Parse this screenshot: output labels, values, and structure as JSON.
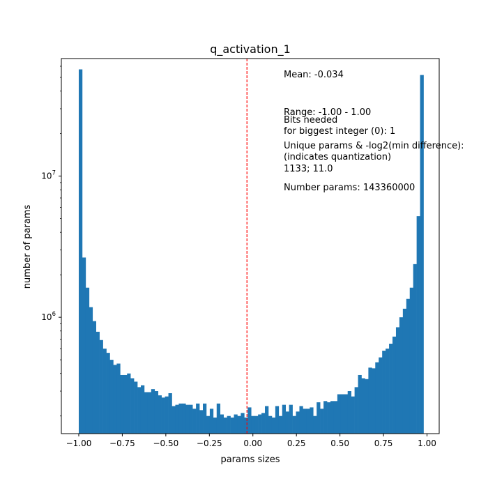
{
  "chart_data": {
    "type": "bar",
    "title": "q_activation_1",
    "xlabel": "params sizes",
    "ylabel": "number of params",
    "yscale": "log",
    "xlim": [
      -1.1,
      1.07
    ],
    "ylim": [
      150000,
      68000000
    ],
    "grid": false,
    "bar_color": "#1f77b4",
    "mean_line": {
      "value": -0.034,
      "color": "#ff0000",
      "style": "dashed"
    },
    "x_ticks": [
      {
        "value": -1.0,
        "label": "−1.00"
      },
      {
        "value": -0.75,
        "label": "−0.75"
      },
      {
        "value": -0.5,
        "label": "−0.50"
      },
      {
        "value": -0.25,
        "label": "−0.25"
      },
      {
        "value": 0.0,
        "label": "0.00"
      },
      {
        "value": 0.25,
        "label": "0.25"
      },
      {
        "value": 0.5,
        "label": "0.50"
      },
      {
        "value": 0.75,
        "label": "0.75"
      },
      {
        "value": 1.0,
        "label": "1.00"
      }
    ],
    "y_ticks": [
      {
        "value": 1000000,
        "base": "10",
        "exp": "6"
      },
      {
        "value": 10000000,
        "base": "10",
        "exp": "7"
      }
    ],
    "bins": {
      "start": -1.0,
      "end": 0.98,
      "count": 100
    },
    "values": [
      57000000,
      2650000,
      1620000,
      1180000,
      940000,
      790000,
      690000,
      600000,
      560000,
      500000,
      460000,
      470000,
      390000,
      390000,
      400000,
      370000,
      350000,
      320000,
      330000,
      295000,
      295000,
      310000,
      300000,
      280000,
      270000,
      275000,
      290000,
      235000,
      240000,
      245000,
      245000,
      240000,
      240000,
      225000,
      245000,
      220000,
      245000,
      200000,
      225000,
      195000,
      245000,
      205000,
      195000,
      200000,
      195000,
      205000,
      200000,
      210000,
      195000,
      230000,
      200000,
      200000,
      205000,
      210000,
      235000,
      200000,
      195000,
      235000,
      200000,
      240000,
      215000,
      240000,
      200000,
      215000,
      235000,
      225000,
      225000,
      230000,
      200000,
      250000,
      225000,
      255000,
      250000,
      255000,
      255000,
      285000,
      285000,
      285000,
      300000,
      275000,
      320000,
      390000,
      370000,
      365000,
      440000,
      435000,
      480000,
      520000,
      580000,
      600000,
      650000,
      730000,
      850000,
      1000000,
      1150000,
      1350000,
      1620000,
      2380000,
      5200000,
      52000000
    ],
    "annotations": [
      {
        "text": "Mean: -0.034"
      },
      {
        "text": "Range: -1.00 - 1.00"
      },
      {
        "text": "Bits needed"
      },
      {
        "text": "for biggest integer (0): 1"
      },
      {
        "text": "Unique params & -log2(min difference):"
      },
      {
        "text": "(indicates quantization)"
      },
      {
        "text": "1133; 11.0"
      },
      {
        "text": "Number params: 143360000"
      }
    ]
  }
}
